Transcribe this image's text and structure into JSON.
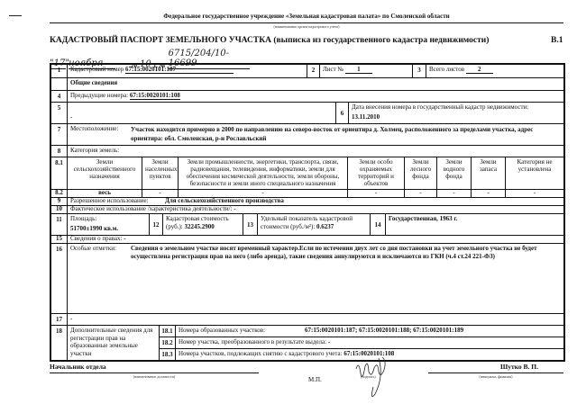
{
  "header": {
    "organization": "Федеральное государственное учреждение «Земельная кадастровая палата» по Смоленской области",
    "organization_caption": "(наименование органа кадастрового учета)",
    "title": "КАДАСТРОВЫЙ ПАСПОРТ ЗЕМЕЛЬНОГО УЧАСТКА (выписка из государственного кадастра недвижимости)",
    "form_code": "В.1",
    "date_day": "\"17\"",
    "date_month": "ноября",
    "date_year_prefix": "20",
    "date_year": "10",
    "date_year_suffix": "г. №",
    "doc_number": "6715/204/10-16699"
  },
  "rows": {
    "r1": {
      "num": "1",
      "label": "Кадастровый номер",
      "value": "67:15:0020101:187",
      "num2": "2",
      "sheet_label": "Лист №",
      "sheet": "1",
      "num3": "3",
      "total_label": "Всего листов",
      "total": "2"
    },
    "general": "Общие сведения",
    "r4": {
      "num": "4",
      "label": "Предыдущие номера:",
      "value": "67:15:0020101:108"
    },
    "r5": {
      "num": "5",
      "value": "-",
      "num6": "6",
      "date_label": "Дата внесения номера в государственный кадастр недвижимости:",
      "date": "13.11.2010"
    },
    "r7": {
      "num": "7",
      "label": "Местоположение:",
      "value": "Участок находится примерно в 2000 по направлению на северо-восток от ориентира д. Холмец, расположенного за пределами участка, адрес ориентира: обл. Смоленская, р-н Рославльский"
    },
    "r8": {
      "num": "8",
      "label": "Категория земель:"
    },
    "r81": {
      "num": "8.1",
      "cols": [
        "Земли сельскохозяйственного назначения",
        "Земли населенных пунктов",
        "Земли промышленности, энергетики, транспорта, связи, радиовещания, телевидения, информатики, земли для обеспечения космической деятельности, земли обороны, безопасности и земли иного специального назначения",
        "Земли особо охраняемых территорий и объектов",
        "Земли лесного фонда",
        "Земли водного фонда",
        "Земли запаса",
        "Категория не установлена"
      ]
    },
    "r82": {
      "num": "8.2",
      "vals": [
        "весь",
        "-",
        "-",
        "-",
        "-",
        "-",
        "-",
        "-"
      ]
    },
    "r9": {
      "num": "9",
      "label": "Разрешенное использование:",
      "value": "Для сельскохозяйственного производства"
    },
    "r10": {
      "num": "10",
      "label": "Фактическое использование /характеристика деятельности/:",
      "value": "-"
    },
    "r11": {
      "num": "11",
      "label": "Площадь:",
      "value": "51700±1990 кв.м.",
      "num12": "12",
      "cost_label": "Кадастровая стоимость (руб.):",
      "cost": "32245.2900",
      "num13": "13",
      "udel_label": "Удельный показатель кадастровой стоимости (руб./м²):",
      "udel": "0.6237",
      "num14": "14",
      "r14": "Государственная, 1963 г."
    },
    "r15": {
      "num": "15",
      "label": "Сведения о правах:",
      "value": "-"
    },
    "r16": {
      "num": "16",
      "label": "Особые отметки:",
      "value": "Сведения о земельном участке носят временный характер.Если по истечении двух лет со дня постановки на учет земельного участка не будет осуществлена регистрация прав на него (либо аренда), такие сведения аннулируются и исключаются из ГКН (ч.4 ст.24 221-ФЗ)"
    },
    "r17": {
      "num": "17",
      "value": "-"
    },
    "r18": {
      "num": "18",
      "label": "Дополнительные сведения для регистрации прав на образованные земельные участки",
      "sub": [
        {
          "num": "18.1",
          "label": "Номера образованных участков:",
          "value": "67:15:0020101:187; 67:15:0020101:188; 67:15:0020101:189"
        },
        {
          "num": "18.2",
          "label": "Номер участка, преобразованного в результате выдела:",
          "value": "-"
        },
        {
          "num": "18.3",
          "label": "Номера участков, подлежащих снятию с кадастрового учета:",
          "value": "67:15:0020101:108"
        }
      ]
    }
  },
  "footer": {
    "position": "Начальник отдела",
    "position_caption": "(наименование должности)",
    "stamp": "М.П.",
    "signature_caption": "(подпись)",
    "name": "Шутко В. П.",
    "name_caption": "(инициалы, фамилия)"
  }
}
